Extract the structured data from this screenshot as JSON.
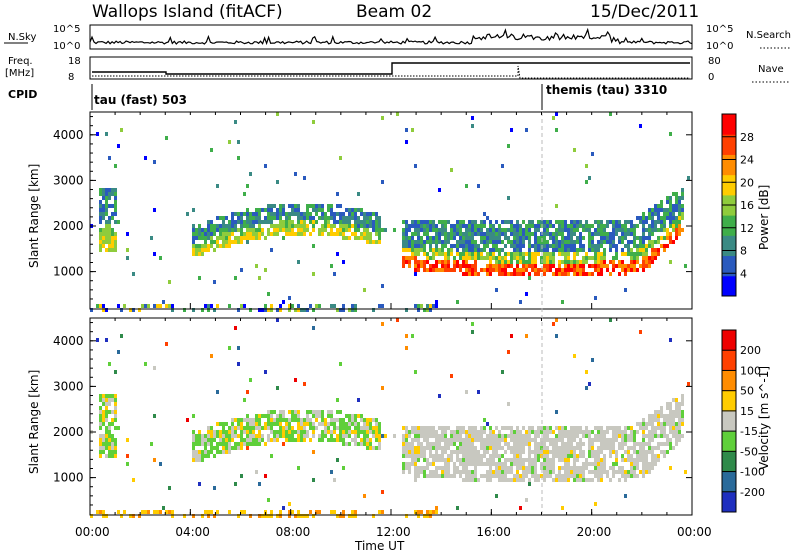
{
  "header": {
    "station": "Wallops Island (fitACF)",
    "beam": "Beam 02",
    "date": "15/Dec/2011"
  },
  "top_panel": {
    "left_label_nsky": "N.Sky",
    "left_label_freq_line1": "Freq.",
    "left_label_freq_line2": "[MHz]",
    "left_label_cpid": "CPID",
    "right_label_nsearch": "N.Search",
    "right_label_nave": "Nave",
    "nsky_ticks": [
      "10^5",
      "10^0"
    ],
    "nsearch_ticks": [
      "10^5",
      "10^0"
    ],
    "freq_ticks": [
      "18",
      "8"
    ],
    "nave_ticks": [
      "80",
      "0"
    ],
    "cpid_entries": [
      {
        "label": "tau (fast) 503",
        "start_hour": 0
      },
      {
        "label": "themis (tau) 3310",
        "start_hour": 18.0
      }
    ]
  },
  "time_axis": {
    "xlabel": "Time UT",
    "ticks": [
      "00:00",
      "04:00",
      "08:00",
      "12:00",
      "16:00",
      "20:00",
      "00:00"
    ],
    "range_hours": [
      0,
      24
    ]
  },
  "chart_data": [
    {
      "type": "heatmap",
      "name": "power",
      "ylabel": "Slant Range [km]",
      "ylim": [
        180,
        4500
      ],
      "yticks": [
        1000,
        2000,
        3000,
        4000
      ],
      "xlim_hours": [
        0,
        24
      ],
      "colorbar_label": "Power [dB]",
      "colorbar_ticks": [
        "28",
        "24",
        "20",
        "16",
        "12",
        "8",
        "4"
      ],
      "colorbar_colors": [
        "#0000ff",
        "#2a5abe",
        "#3a8a84",
        "#3fae4a",
        "#8fcc3c",
        "#ffcc00",
        "#ff8c00",
        "#ff4000",
        "#ff0000"
      ],
      "features": [
        {
          "description": "main echo band",
          "hours": [
            12.5,
            23.5
          ],
          "range_km": [
            900,
            2100
          ]
        },
        {
          "description": "morning arc",
          "hours": [
            4.0,
            11.5
          ],
          "range_km": [
            1300,
            2300
          ]
        }
      ]
    },
    {
      "type": "heatmap",
      "name": "velocity",
      "ylabel": "Slant Range [km]",
      "ylim": [
        180,
        4500
      ],
      "yticks": [
        1000,
        2000,
        3000,
        4000
      ],
      "xlim_hours": [
        0,
        24
      ],
      "colorbar_label": "Velocity [m s^-1]",
      "colorbar_ticks": [
        "200",
        "100",
        "50",
        "15",
        "-15",
        "-50",
        "-100",
        "-200"
      ],
      "colorbar_colors": [
        "#1f2fbf",
        "#2a6a9a",
        "#2f8a4a",
        "#5fcf3a",
        "#c8c8c0",
        "#ffcc00",
        "#ff8c00",
        "#ff4000",
        "#ee0000"
      ]
    }
  ]
}
